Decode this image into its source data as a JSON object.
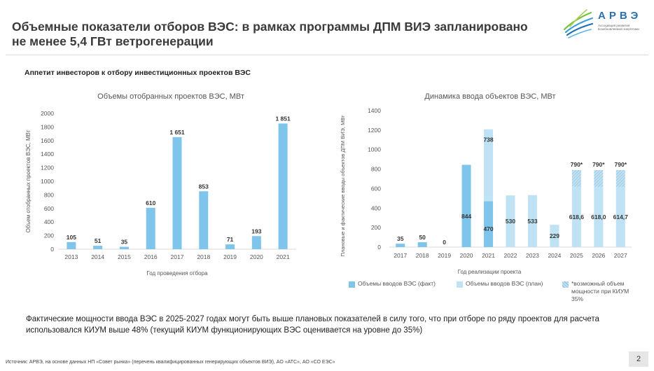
{
  "header": {
    "title": "Объемные показатели отборов ВЭС: в рамках программы ДПМ ВИЭ запланировано не менее 5,4 ГВт ветрогенерации",
    "logo_name": "АРВЭ",
    "logo_sub": "Ассоциация развития возобновляемой энергетики"
  },
  "subtitle": "Аппетит инвесторов к отбору инвестиционных проектов ВЭС",
  "colors": {
    "fact": "#7fc4ea",
    "plan": "#bfe3f5",
    "hatch": "#8fb9d3",
    "axis": "#d9d9d9",
    "text": "#555555"
  },
  "chart_data": [
    {
      "type": "bar",
      "title": "Объемы отобранных проектов ВЭС, МВт",
      "xlabel": "Год проведения отбора",
      "ylabel": "Объем отобранных проектов ВЭС, МВт",
      "ylim": [
        0,
        2000
      ],
      "yticks": [
        0,
        200,
        400,
        600,
        800,
        1000,
        1200,
        1400,
        1600,
        1800,
        2000
      ],
      "categories": [
        "2013",
        "2014",
        "2015",
        "2016",
        "2017",
        "2018",
        "2019",
        "2020",
        "2021"
      ],
      "values": [
        105,
        51,
        35,
        610,
        1651,
        853,
        71,
        193,
        1851
      ],
      "value_labels": [
        "105",
        "51",
        "35",
        "610",
        "1 651",
        "853",
        "71",
        "193",
        "1 851"
      ]
    },
    {
      "type": "bar",
      "stacked": true,
      "title": "Динамика ввода объектов ВЭС, МВт",
      "xlabel": "Год реализации проекта",
      "ylabel": "Плановые и фактические вводы объектов ДПМ ВИЭ, МВт",
      "ylim": [
        0,
        1400
      ],
      "yticks": [
        0,
        200,
        400,
        600,
        800,
        1000,
        1200,
        1400
      ],
      "categories": [
        "2017",
        "2018",
        "2019",
        "2020",
        "2021",
        "2022",
        "2023",
        "2024",
        "2025",
        "2026",
        "2027"
      ],
      "series": [
        {
          "name": "Объемы вводов ВЭС (факт)",
          "values": [
            35,
            50,
            0,
            844,
            470,
            0,
            0,
            0,
            0,
            0,
            0
          ],
          "labels": [
            "35",
            "50",
            "0",
            "844",
            "470",
            "",
            "",
            "",
            "",
            "",
            ""
          ]
        },
        {
          "name": "Объемы вводов ВЭС (план)",
          "values": [
            0,
            0,
            0,
            0,
            738,
            530,
            533,
            229,
            618.6,
            618.0,
            614.7
          ],
          "labels": [
            "",
            "",
            "",
            "",
            "738",
            "530",
            "533",
            "229",
            "618,6",
            "618,0",
            "614,7"
          ]
        },
        {
          "name": "*возможный объем мощности при КИУМ 35%",
          "values": [
            0,
            0,
            0,
            0,
            0,
            0,
            0,
            0,
            171.4,
            172.0,
            175.3
          ],
          "labels": [
            "",
            "",
            "",
            "",
            "",
            "",
            "",
            "",
            "790*",
            "790*",
            "790*"
          ]
        }
      ]
    }
  ],
  "note": "Фактические мощности ввода ВЭС в 2025-2027 годах могут быть выше плановых показателей в силу того, что при отборе по ряду проектов для расчета использовался КИУМ выше 48% (текущий КИУМ функционирующих ВЭС оценивается на уровне до 35%)",
  "source": "Источник:  АРВЭ, на основе данных НП «Совет рынка» (перечень квалифицированных генерирующих объектов ВИЭ), АО «АТС», АО «СО ЕЭС»",
  "page_number": "2"
}
